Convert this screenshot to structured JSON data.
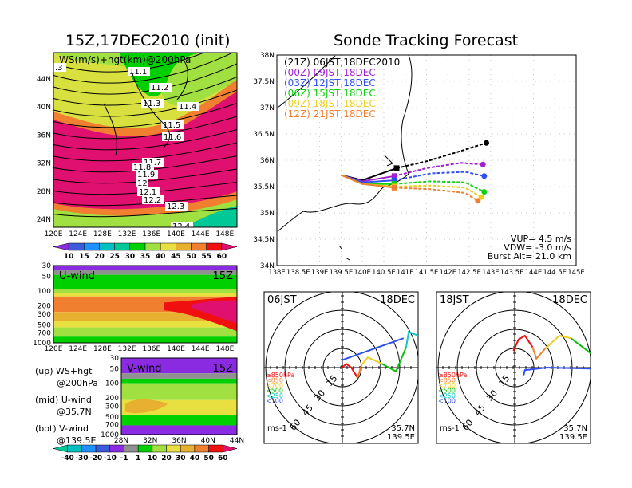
{
  "left_title": "15Z,17DEC2010 (init)",
  "right_title": "Sonde Tracking Forecast",
  "chart_data": [
    {
      "type": "heatmap",
      "name": "ws-hgt-map",
      "label": "WS(m/s)+hgt(km)@200hPa",
      "xticks": [
        "120E",
        "124E",
        "128E",
        "132E",
        "136E",
        "140E",
        "144E",
        "148E"
      ],
      "yticks": [
        "24N",
        "28N",
        "32N",
        "36N",
        "40N",
        "44N"
      ],
      "contour_labels": [
        ".3",
        "11.1",
        "11.2",
        "11.3",
        "11.4",
        "11.5",
        "11.6",
        "11.7",
        "11.8",
        "11.9",
        "12",
        "12.1",
        "12.2",
        "12.3",
        "12.4"
      ],
      "colorbar": {
        "labels": [
          "10",
          "15",
          "20",
          "25",
          "30",
          "35",
          "40",
          "45",
          "50",
          "55",
          "60"
        ],
        "colors": [
          "#8a2be2",
          "#3b5bdb",
          "#1e90ff",
          "#00c0c0",
          "#00c896",
          "#00d000",
          "#a0e040",
          "#e8e040",
          "#e8b030",
          "#f08030",
          "#f01010",
          "#e01070"
        ]
      }
    },
    {
      "type": "heatmap",
      "name": "u-wind",
      "label": "U-wind",
      "time": "15Z",
      "xticks": [
        "120E",
        "124E",
        "128E",
        "132E",
        "136E",
        "140E",
        "144E",
        "148E"
      ],
      "yticks": [
        "30",
        "50",
        "100",
        "200",
        "300",
        "500",
        "700",
        "1000"
      ]
    },
    {
      "type": "heatmap",
      "name": "v-wind",
      "label": "V-wind",
      "time": "15Z",
      "xticks": [
        "28N",
        "32N",
        "36N",
        "40N",
        "44N"
      ],
      "yticks": [
        "30",
        "50",
        "100",
        "200",
        "300",
        "500",
        "700",
        "1000"
      ],
      "colorbar": {
        "labels": [
          "-40",
          "-30",
          "-20",
          "-10",
          "-1",
          "1",
          "10",
          "20",
          "30",
          "40",
          "50",
          "60"
        ],
        "colors": [
          "#00c896",
          "#00c0c0",
          "#1e90ff",
          "#3b5bdb",
          "#8a2be2",
          "#909090",
          "#00d000",
          "#a0e040",
          "#e8e040",
          "#e8b030",
          "#f08030",
          "#f01010",
          "#e01070"
        ]
      }
    },
    {
      "type": "line",
      "name": "sonde-tracks",
      "xticks": [
        "138E",
        "138.5E",
        "139E",
        "139.5E",
        "140E",
        "140.5E",
        "141E",
        "141.5E",
        "142E",
        "142.5E",
        "143E",
        "143.5E",
        "144E",
        "144.5E",
        "145E"
      ],
      "yticks": [
        "34N",
        "34.5N",
        "35N",
        "35.5N",
        "36N",
        "36.5N",
        "37N",
        "37.5N",
        "38N"
      ],
      "xlim": [
        138,
        145
      ],
      "ylim": [
        34,
        38
      ],
      "series": [
        {
          "name": "(21Z)",
          "label": "06JST,18DEC2010",
          "color": "#000000",
          "points": [
            [
              139.5,
              35.72
            ],
            [
              140.0,
              35.62
            ],
            [
              140.8,
              35.85
            ],
            [
              141.5,
              35.98
            ],
            [
              142.2,
              36.15
            ],
            [
              142.9,
              36.33
            ]
          ]
        },
        {
          "name": "(00Z)",
          "label": "09JST,18DEC",
          "color": "#a020d0",
          "points": [
            [
              139.5,
              35.72
            ],
            [
              140.0,
              35.6
            ],
            [
              140.75,
              35.7
            ],
            [
              141.5,
              35.85
            ],
            [
              142.3,
              35.95
            ],
            [
              142.82,
              35.92
            ]
          ]
        },
        {
          "name": "(03Z)",
          "label": "12JST,18DEC",
          "color": "#3050f0",
          "points": [
            [
              139.5,
              35.72
            ],
            [
              140.0,
              35.58
            ],
            [
              140.75,
              35.62
            ],
            [
              141.6,
              35.75
            ],
            [
              142.4,
              35.78
            ],
            [
              142.85,
              35.7
            ]
          ]
        },
        {
          "name": "(06Z)",
          "label": "15JST,18DEC",
          "color": "#10d010",
          "points": [
            [
              139.5,
              35.72
            ],
            [
              140.0,
              35.55
            ],
            [
              140.75,
              35.55
            ],
            [
              141.6,
              35.6
            ],
            [
              142.4,
              35.58
            ],
            [
              142.85,
              35.4
            ]
          ]
        },
        {
          "name": "(09Z)",
          "label": "18JST,18DEC",
          "color": "#e8d020",
          "points": [
            [
              139.5,
              35.72
            ],
            [
              140.0,
              35.55
            ],
            [
              140.75,
              35.5
            ],
            [
              141.6,
              35.52
            ],
            [
              142.4,
              35.48
            ],
            [
              142.78,
              35.3
            ]
          ]
        },
        {
          "name": "(12Z)",
          "label": "21JST,18DEC",
          "color": "#f08030",
          "points": [
            [
              139.5,
              35.72
            ],
            [
              140.0,
              35.55
            ],
            [
              140.75,
              35.48
            ],
            [
              141.6,
              35.45
            ],
            [
              142.4,
              35.38
            ],
            [
              142.7,
              35.23
            ]
          ]
        }
      ],
      "params": {
        "vup": "VUP= 4.5 m/s",
        "vdw": "VDW= -3.0 m/s",
        "burst": "Burst Alt= 21.0 km"
      }
    },
    {
      "type": "line",
      "name": "hodograph-06jst",
      "time": "06JST",
      "date": "18DEC",
      "units": "ms-1",
      "lat": "35.7N",
      "lon": "139.5E",
      "rings": [
        "15",
        "30",
        "45",
        "60"
      ]
    },
    {
      "type": "line",
      "name": "hodograph-18jst",
      "time": "18JST",
      "date": "18DEC",
      "units": "ms-1",
      "lat": "35.7N",
      "lon": "139.5E",
      "rings": [
        "15",
        "30",
        "45",
        "60"
      ]
    }
  ],
  "hodo_legend": [
    {
      "label": "≥850hPa",
      "color": "#f01010"
    },
    {
      "label": "<850",
      "color": "#f08030"
    },
    {
      "label": "<700",
      "color": "#e8d020"
    },
    {
      "label": "<500",
      "color": "#10c010"
    },
    {
      "label": "<250",
      "color": "#10c8c8"
    },
    {
      "label": "<100",
      "color": "#3050f0"
    }
  ],
  "notes": [
    {
      "a": "(up) WS+hgt",
      "b": "@200hPa"
    },
    {
      "a": "(mid) U-wind",
      "b": "@35.7N"
    },
    {
      "a": "(bot) V-wind",
      "b": "@139.5E"
    }
  ]
}
